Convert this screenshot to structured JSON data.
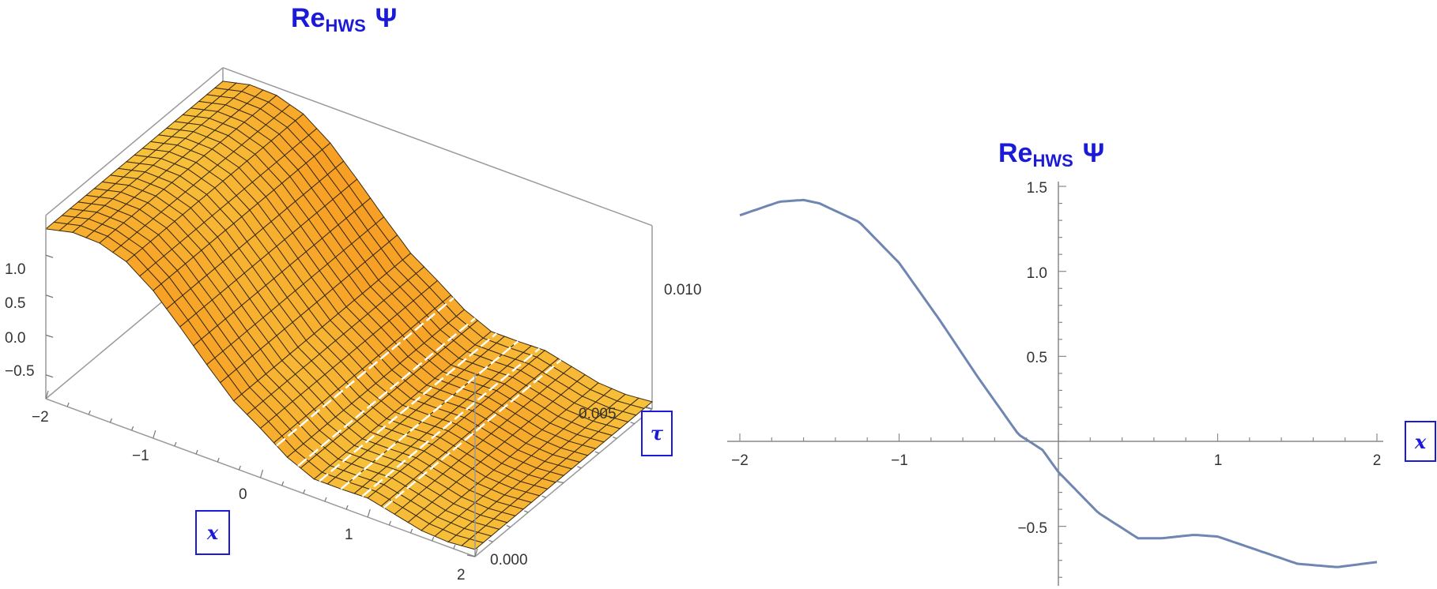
{
  "chart_data": [
    {
      "type": "surface3d",
      "title": {
        "main": "Re",
        "subscript": "HWS",
        "symbol": "Ψ"
      },
      "x_axis": {
        "label": "x",
        "ticks": [
          "−2",
          "−1",
          "0",
          "1",
          "2"
        ],
        "range": [
          -2,
          2
        ]
      },
      "tau_axis": {
        "label": "τ",
        "ticks": [
          "0.000",
          "0.005",
          "0.010"
        ],
        "range": [
          0,
          0.01
        ]
      },
      "z_axis": {
        "ticks": [
          "−0.5",
          "0.0",
          "0.5",
          "1.0"
        ],
        "range": [
          -0.8,
          1.5
        ]
      },
      "surface_color": "#f7b42c",
      "highlight_color": "#ffffff",
      "x_samples": [
        -2.0,
        -1.75,
        -1.5,
        -1.25,
        -1.0,
        -0.75,
        -0.5,
        -0.25,
        0.0,
        0.25,
        0.5,
        0.75,
        1.0,
        1.25,
        1.5,
        1.75,
        2.0
      ],
      "z_samples": [
        1.33,
        1.41,
        1.4,
        1.29,
        1.05,
        0.72,
        0.37,
        0.04,
        -0.18,
        -0.42,
        -0.57,
        -0.57,
        -0.56,
        -0.64,
        -0.72,
        -0.74,
        -0.71
      ]
    },
    {
      "type": "line",
      "title": {
        "main": "Re",
        "subscript": "HWS",
        "symbol": "Ψ"
      },
      "x_axis": {
        "label": "x",
        "ticks": [
          "−2",
          "−1",
          "1",
          "2"
        ],
        "range": [
          -2,
          2
        ]
      },
      "y_axis": {
        "ticks": [
          "1.5",
          "1.0",
          "0.5",
          "−0.5"
        ],
        "range": [
          -0.9,
          1.55
        ]
      },
      "series_color": "#6f86b2",
      "x": [
        -2.0,
        -1.75,
        -1.6,
        -1.5,
        -1.25,
        -1.0,
        -0.75,
        -0.5,
        -0.25,
        -0.1,
        0.0,
        0.25,
        0.5,
        0.65,
        0.85,
        1.0,
        1.25,
        1.5,
        1.75,
        2.0
      ],
      "y": [
        1.33,
        1.41,
        1.42,
        1.4,
        1.29,
        1.05,
        0.72,
        0.37,
        0.04,
        -0.05,
        -0.18,
        -0.42,
        -0.57,
        -0.57,
        -0.55,
        -0.56,
        -0.64,
        -0.72,
        -0.74,
        -0.71
      ]
    }
  ]
}
